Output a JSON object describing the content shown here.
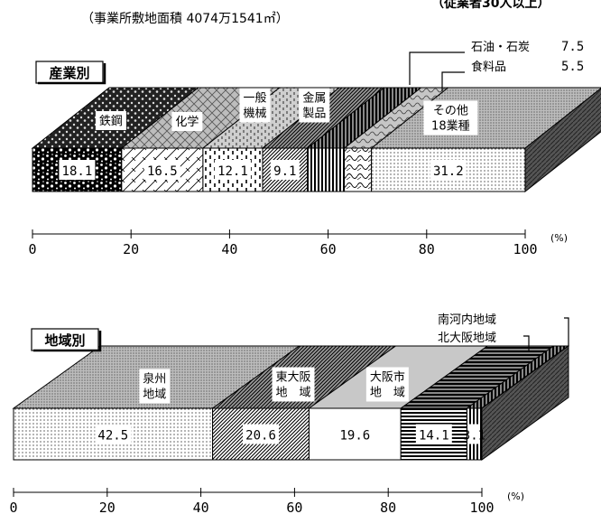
{
  "chart_data": [
    {
      "type": "bar",
      "orientation": "horizontal-stacked",
      "subtitle": "（事業所敷地面積 4074万1541㎡）",
      "corner_note": "（従業者30人以上）",
      "section_label": "産業別",
      "unit": "(%)",
      "xlim": [
        0,
        100
      ],
      "xticks": [
        "0",
        "20",
        "40",
        "60",
        "80",
        "100"
      ],
      "segments": [
        {
          "name": "鉄鋼",
          "value": 18.1,
          "value_label": "18.1",
          "pattern": "blob"
        },
        {
          "name": "化学",
          "value": 16.5,
          "value_label": "16.5",
          "pattern": "cross"
        },
        {
          "name": "一般\n機械",
          "value": 12.1,
          "value_label": "12.1",
          "pattern": "dash"
        },
        {
          "name": "金属\n製品",
          "value": 9.1,
          "value_label": "9.1",
          "pattern": "diag"
        },
        {
          "name": "石油・石炭",
          "value": 7.5,
          "value_label": "7.5",
          "pattern": "vline"
        },
        {
          "name": "食料品",
          "value": 5.5,
          "value_label": "5.5",
          "pattern": "wave"
        },
        {
          "name": "その他\n18業種",
          "value": 31.2,
          "value_label": "31.2",
          "pattern": "dots"
        }
      ]
    },
    {
      "type": "bar",
      "orientation": "horizontal-stacked",
      "section_label": "地域別",
      "unit": "(%)",
      "xlim": [
        0,
        100
      ],
      "xticks": [
        "0",
        "20",
        "40",
        "60",
        "80",
        "100"
      ],
      "segments": [
        {
          "name": "泉州\n地域",
          "value": 42.5,
          "value_label": "42.5",
          "pattern": "dots"
        },
        {
          "name": "東大阪\n地　域",
          "value": 20.6,
          "value_label": "20.6",
          "pattern": "diag"
        },
        {
          "name": "大阪市\n地　域",
          "value": 19.6,
          "value_label": "19.6",
          "pattern": "white"
        },
        {
          "name": "北大阪地域",
          "value": 14.1,
          "value_label": "14.1",
          "pattern": "hline"
        },
        {
          "name": "南河内地域",
          "value": 3.1,
          "value_label": "3.1",
          "pattern": "vline"
        }
      ]
    }
  ]
}
